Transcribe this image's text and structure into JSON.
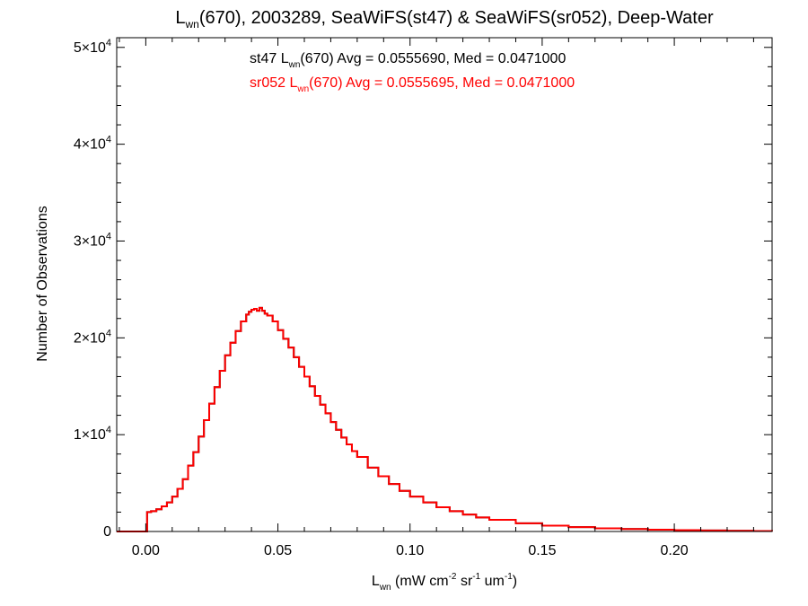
{
  "chart_data": {
    "type": "histogram",
    "title": {
      "parts": [
        {
          "text": "L"
        },
        {
          "text": "wn",
          "sub": true
        },
        {
          "text": "(670), 2003289, SeaWiFS(st47) & SeaWiFS(sr052), Deep-Water"
        }
      ]
    },
    "xlabel": {
      "parts": [
        {
          "text": "L"
        },
        {
          "text": "wn",
          "sub": true
        },
        {
          "text": " (mW cm"
        },
        {
          "text": "-2",
          "sup": true
        },
        {
          "text": " sr"
        },
        {
          "text": "-1",
          "sup": true
        },
        {
          "text": " um"
        },
        {
          "text": "-1",
          "sup": true
        },
        {
          "text": ")"
        }
      ]
    },
    "ylabel": "Number of Observations",
    "xlim": [
      -0.011,
      0.237
    ],
    "ylim": [
      0,
      51000
    ],
    "x_ticks": [
      {
        "value": 0.0,
        "label": "0.00"
      },
      {
        "value": 0.05,
        "label": "0.05"
      },
      {
        "value": 0.1,
        "label": "0.10"
      },
      {
        "value": 0.15,
        "label": "0.15"
      },
      {
        "value": 0.2,
        "label": "0.20"
      }
    ],
    "y_ticks": [
      {
        "value": 0,
        "mantissa": "0",
        "exp": ""
      },
      {
        "value": 10000,
        "mantissa": "1×10",
        "exp": "4"
      },
      {
        "value": 20000,
        "mantissa": "2×10",
        "exp": "4"
      },
      {
        "value": 30000,
        "mantissa": "3×10",
        "exp": "4"
      },
      {
        "value": 40000,
        "mantissa": "4×10",
        "exp": "4"
      },
      {
        "value": 50000,
        "mantissa": "5×10",
        "exp": "4"
      }
    ],
    "annotations": [
      {
        "color": "#000000",
        "parts": [
          {
            "text": "st47 L"
          },
          {
            "text": "wn",
            "sub": true
          },
          {
            "text": "(670) Avg = 0.0555690, Med = 0.0471000"
          }
        ]
      },
      {
        "color": "#ff0000",
        "parts": [
          {
            "text": "sr052 L"
          },
          {
            "text": "wn",
            "sub": true
          },
          {
            "text": "(670) Avg = 0.0555695, Med = 0.0471000"
          }
        ]
      }
    ],
    "series": [
      {
        "name": "st47",
        "color": "#000000",
        "points": [
          [
            -0.011,
            0
          ],
          [
            0,
            0
          ],
          [
            0.0005,
            2000
          ],
          [
            0.002,
            2100
          ],
          [
            0.004,
            2300
          ],
          [
            0.006,
            2600
          ],
          [
            0.008,
            3000
          ],
          [
            0.01,
            3600
          ],
          [
            0.012,
            4400
          ],
          [
            0.014,
            5400
          ],
          [
            0.016,
            6800
          ],
          [
            0.018,
            8200
          ],
          [
            0.02,
            9800
          ],
          [
            0.022,
            11500
          ],
          [
            0.024,
            13200
          ],
          [
            0.026,
            14900
          ],
          [
            0.028,
            16600
          ],
          [
            0.03,
            18200
          ],
          [
            0.032,
            19500
          ],
          [
            0.034,
            20700
          ],
          [
            0.036,
            21700
          ],
          [
            0.038,
            22400
          ],
          [
            0.039,
            22700
          ],
          [
            0.04,
            22900
          ],
          [
            0.041,
            23000
          ],
          [
            0.042,
            22800
          ],
          [
            0.043,
            23100
          ],
          [
            0.044,
            22800
          ],
          [
            0.045,
            22500
          ],
          [
            0.046,
            22300
          ],
          [
            0.048,
            21700
          ],
          [
            0.05,
            20800
          ],
          [
            0.052,
            19900
          ],
          [
            0.054,
            19000
          ],
          [
            0.056,
            18000
          ],
          [
            0.058,
            17000
          ],
          [
            0.06,
            16000
          ],
          [
            0.062,
            15000
          ],
          [
            0.064,
            14000
          ],
          [
            0.066,
            13100
          ],
          [
            0.068,
            12200
          ],
          [
            0.07,
            11300
          ],
          [
            0.072,
            10500
          ],
          [
            0.074,
            9700
          ],
          [
            0.076,
            9000
          ],
          [
            0.078,
            8300
          ],
          [
            0.08,
            7700
          ],
          [
            0.084,
            6600
          ],
          [
            0.088,
            5700
          ],
          [
            0.092,
            4900
          ],
          [
            0.096,
            4200
          ],
          [
            0.1,
            3600
          ],
          [
            0.105,
            3000
          ],
          [
            0.11,
            2500
          ],
          [
            0.115,
            2100
          ],
          [
            0.12,
            1750
          ],
          [
            0.125,
            1450
          ],
          [
            0.13,
            1200
          ],
          [
            0.14,
            850
          ],
          [
            0.15,
            600
          ],
          [
            0.16,
            450
          ],
          [
            0.17,
            330
          ],
          [
            0.18,
            250
          ],
          [
            0.19,
            190
          ],
          [
            0.2,
            140
          ],
          [
            0.21,
            100
          ],
          [
            0.22,
            70
          ],
          [
            0.23,
            50
          ],
          [
            0.237,
            40
          ]
        ]
      },
      {
        "name": "sr052",
        "color": "#ff0000",
        "points": [
          [
            -0.011,
            0
          ],
          [
            0,
            0
          ],
          [
            0.0005,
            2000
          ],
          [
            0.002,
            2100
          ],
          [
            0.004,
            2300
          ],
          [
            0.006,
            2600
          ],
          [
            0.008,
            3000
          ],
          [
            0.01,
            3600
          ],
          [
            0.012,
            4400
          ],
          [
            0.014,
            5400
          ],
          [
            0.016,
            6800
          ],
          [
            0.018,
            8200
          ],
          [
            0.02,
            9800
          ],
          [
            0.022,
            11500
          ],
          [
            0.024,
            13200
          ],
          [
            0.026,
            14900
          ],
          [
            0.028,
            16600
          ],
          [
            0.03,
            18200
          ],
          [
            0.032,
            19500
          ],
          [
            0.034,
            20700
          ],
          [
            0.036,
            21700
          ],
          [
            0.038,
            22400
          ],
          [
            0.039,
            22700
          ],
          [
            0.04,
            22900
          ],
          [
            0.041,
            23000
          ],
          [
            0.042,
            22800
          ],
          [
            0.043,
            23100
          ],
          [
            0.044,
            22800
          ],
          [
            0.045,
            22500
          ],
          [
            0.046,
            22300
          ],
          [
            0.048,
            21700
          ],
          [
            0.05,
            20800
          ],
          [
            0.052,
            19900
          ],
          [
            0.054,
            19000
          ],
          [
            0.056,
            18000
          ],
          [
            0.058,
            17000
          ],
          [
            0.06,
            16000
          ],
          [
            0.062,
            15000
          ],
          [
            0.064,
            14000
          ],
          [
            0.066,
            13100
          ],
          [
            0.068,
            12200
          ],
          [
            0.07,
            11300
          ],
          [
            0.072,
            10500
          ],
          [
            0.074,
            9700
          ],
          [
            0.076,
            9000
          ],
          [
            0.078,
            8300
          ],
          [
            0.08,
            7700
          ],
          [
            0.084,
            6600
          ],
          [
            0.088,
            5700
          ],
          [
            0.092,
            4900
          ],
          [
            0.096,
            4200
          ],
          [
            0.1,
            3600
          ],
          [
            0.105,
            3000
          ],
          [
            0.11,
            2500
          ],
          [
            0.115,
            2100
          ],
          [
            0.12,
            1750
          ],
          [
            0.125,
            1450
          ],
          [
            0.13,
            1200
          ],
          [
            0.14,
            850
          ],
          [
            0.15,
            600
          ],
          [
            0.16,
            450
          ],
          [
            0.17,
            330
          ],
          [
            0.18,
            250
          ],
          [
            0.19,
            190
          ],
          [
            0.2,
            140
          ],
          [
            0.21,
            100
          ],
          [
            0.22,
            70
          ],
          [
            0.23,
            50
          ],
          [
            0.237,
            40
          ]
        ]
      }
    ]
  }
}
